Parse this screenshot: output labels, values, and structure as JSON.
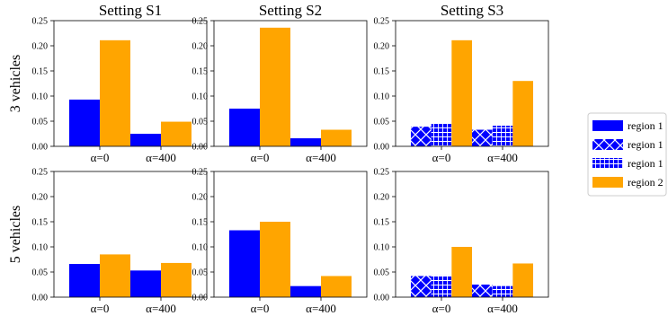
{
  "chart_data": [
    {
      "type": "bar",
      "title": "Setting S1",
      "ylabel": "3 vehicles",
      "ylim": [
        0,
        0.25
      ],
      "yticks": [
        "0.00",
        "0.05",
        "0.10",
        "0.15",
        "0.20",
        "0.25"
      ],
      "categories": [
        "α=0",
        "α=400"
      ],
      "series": [
        {
          "name": "region 1",
          "pattern": "solid",
          "color": "#0000ff",
          "values": [
            0.093,
            0.025
          ]
        },
        {
          "name": "region 2",
          "pattern": "solid",
          "color": "#ffa500",
          "values": [
            0.211,
            0.049
          ]
        }
      ]
    },
    {
      "type": "bar",
      "title": "Setting S2",
      "ylim": [
        0,
        0.25
      ],
      "yticks": [
        "0.00",
        "0.05",
        "0.10",
        "0.15",
        "0.20",
        "0.25"
      ],
      "categories": [
        "α=0",
        "α=400"
      ],
      "series": [
        {
          "name": "region 1",
          "pattern": "solid",
          "color": "#0000ff",
          "values": [
            0.075,
            0.016
          ]
        },
        {
          "name": "region 2",
          "pattern": "solid",
          "color": "#ffa500",
          "values": [
            0.236,
            0.033
          ]
        }
      ]
    },
    {
      "type": "bar",
      "title": "Setting S3",
      "ylim": [
        0,
        0.25
      ],
      "yticks": [
        "0.00",
        "0.05",
        "0.10",
        "0.15",
        "0.20",
        "0.25"
      ],
      "categories": [
        "α=0",
        "α=400"
      ],
      "series": [
        {
          "name": "region 1",
          "pattern": "cross",
          "color": "#0000ff",
          "values": [
            0.039,
            0.033
          ]
        },
        {
          "name": "region 1",
          "pattern": "grid",
          "color": "#0000ff",
          "values": [
            0.045,
            0.041
          ]
        },
        {
          "name": "region 2",
          "pattern": "solid",
          "color": "#ffa500",
          "values": [
            0.211,
            0.13
          ]
        }
      ]
    },
    {
      "type": "bar",
      "ylabel": "5 vehicles",
      "ylim": [
        0,
        0.25
      ],
      "yticks": [
        "0.00",
        "0.05",
        "0.10",
        "0.15",
        "0.20",
        "0.25"
      ],
      "categories": [
        "α=0",
        "α=400"
      ],
      "series": [
        {
          "name": "region 1",
          "pattern": "solid",
          "color": "#0000ff",
          "values": [
            0.066,
            0.053
          ]
        },
        {
          "name": "region 2",
          "pattern": "solid",
          "color": "#ffa500",
          "values": [
            0.085,
            0.068
          ]
        }
      ]
    },
    {
      "type": "bar",
      "ylim": [
        0,
        0.25
      ],
      "yticks": [
        "0.00",
        "0.05",
        "0.10",
        "0.15",
        "0.20",
        "0.25"
      ],
      "categories": [
        "α=0",
        "α=400"
      ],
      "series": [
        {
          "name": "region 1",
          "pattern": "solid",
          "color": "#0000ff",
          "values": [
            0.133,
            0.022
          ]
        },
        {
          "name": "region 2",
          "pattern": "solid",
          "color": "#ffa500",
          "values": [
            0.15,
            0.042
          ]
        }
      ]
    },
    {
      "type": "bar",
      "ylim": [
        0,
        0.25
      ],
      "yticks": [
        "0.00",
        "0.05",
        "0.10",
        "0.15",
        "0.20",
        "0.25"
      ],
      "categories": [
        "α=0",
        "α=400"
      ],
      "series": [
        {
          "name": "region 1",
          "pattern": "cross",
          "color": "#0000ff",
          "values": [
            0.042,
            0.025
          ]
        },
        {
          "name": "region 1",
          "pattern": "grid",
          "color": "#0000ff",
          "values": [
            0.043,
            0.022
          ]
        },
        {
          "name": "region 2",
          "pattern": "solid",
          "color": "#ffa500",
          "values": [
            0.1,
            0.067
          ]
        }
      ]
    }
  ],
  "legend": {
    "placement": "right",
    "entries": [
      {
        "label": "region 1",
        "pattern": "solid",
        "color": "#0000ff"
      },
      {
        "label": "region 1",
        "pattern": "cross",
        "color": "#0000ff"
      },
      {
        "label": "region 1",
        "pattern": "grid",
        "color": "#0000ff"
      },
      {
        "label": "region 2",
        "pattern": "solid",
        "color": "#ffa500"
      }
    ]
  }
}
